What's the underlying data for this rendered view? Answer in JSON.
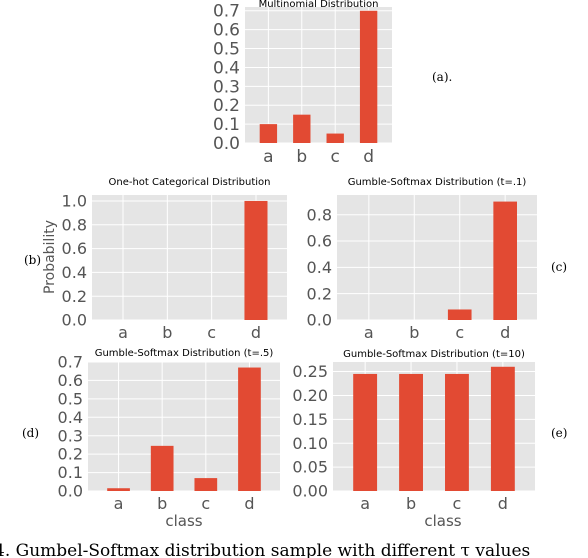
{
  "chart_data": [
    {
      "type": "bar",
      "title": "Multinomial Distribution",
      "panel_label": "(a).",
      "xlabel": "",
      "ylabel": "",
      "categories": [
        "a",
        "b",
        "c",
        "d"
      ],
      "values": [
        0.1,
        0.15,
        0.05,
        0.7
      ],
      "ylim": [
        0,
        0.72
      ],
      "yticks": [
        "0.0",
        "0.1",
        "0.2",
        "0.3",
        "0.4",
        "0.5",
        "0.6",
        "0.7"
      ],
      "grid": true
    },
    {
      "type": "bar",
      "title": "One-hot Categorical Distribution",
      "panel_label": "(b)",
      "xlabel": "",
      "ylabel": "Probability",
      "categories": [
        "a",
        "b",
        "c",
        "d"
      ],
      "values": [
        0,
        0,
        0,
        1.0
      ],
      "ylim": [
        0,
        1.05
      ],
      "yticks": [
        "0.0",
        "0.2",
        "0.4",
        "0.6",
        "0.8",
        "1.0"
      ],
      "grid": true
    },
    {
      "type": "bar",
      "title": "Gumble-Softmax Distribution (t=.1)",
      "panel_label": "(c)",
      "xlabel": "",
      "ylabel": "",
      "categories": [
        "a",
        "b",
        "c",
        "d"
      ],
      "values": [
        0,
        0,
        0.08,
        0.9
      ],
      "ylim": [
        0,
        0.95
      ],
      "yticks": [
        "0.0",
        "0.2",
        "0.4",
        "0.6",
        "0.8"
      ],
      "grid": true
    },
    {
      "type": "bar",
      "title": "Gumble-Softmax Distribution (t=.5)",
      "panel_label": "(d)",
      "xlabel": "class",
      "ylabel": "",
      "categories": [
        "a",
        "b",
        "c",
        "d"
      ],
      "values": [
        0.015,
        0.245,
        0.07,
        0.67
      ],
      "ylim": [
        0,
        0.7
      ],
      "yticks": [
        "0.0",
        "0.1",
        "0.2",
        "0.3",
        "0.4",
        "0.5",
        "0.6",
        "0.7"
      ],
      "grid": true
    },
    {
      "type": "bar",
      "title": "Gumble-Softmax Distribution (t=10)",
      "panel_label": "(e)",
      "xlabel": "class",
      "ylabel": "",
      "categories": [
        "a",
        "b",
        "c",
        "d"
      ],
      "values": [
        0.245,
        0.245,
        0.245,
        0.26
      ],
      "ylim": [
        0,
        0.27
      ],
      "yticks": [
        "0.00",
        "0.05",
        "0.10",
        "0.15",
        "0.20",
        "0.25"
      ],
      "grid": true
    }
  ],
  "caption": "4.  Gumbel-Softmax distribution sample with different τ values",
  "colors": {
    "bar": "#e24a33",
    "plot_bg": "#e5e5e5",
    "grid": "#ffffff",
    "tick_text": "#555555"
  }
}
